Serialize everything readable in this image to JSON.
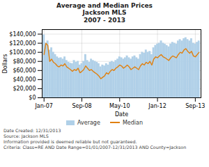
{
  "chart_data": {
    "type": "bar",
    "title": "Average and Median Prices\nJackson MLS\n2007 - 2013",
    "xlabel": "Date",
    "ylabel": "Dollars",
    "categories": [
      "Jan-07",
      null,
      null,
      null,
      null,
      null,
      null,
      null,
      null,
      null,
      null,
      null,
      null,
      null,
      null,
      null,
      null,
      null,
      null,
      null,
      "Sep-08",
      null,
      null,
      null,
      null,
      null,
      null,
      null,
      null,
      null,
      null,
      null,
      null,
      null,
      null,
      null,
      null,
      null,
      null,
      null,
      "May-10",
      null,
      null,
      null,
      null,
      null,
      null,
      null,
      null,
      null,
      null,
      null,
      null,
      null,
      null,
      null,
      null,
      null,
      null,
      null,
      "Jan-12",
      null,
      null,
      null,
      null,
      null,
      null,
      null,
      null,
      null,
      null,
      null,
      null,
      null,
      null,
      null,
      null,
      null,
      null,
      null,
      "Sep-13",
      null,
      null
    ],
    "series": [
      {
        "name": "Average",
        "type": "bar",
        "color": "#b0d0e8",
        "values": [
          138000,
          120000,
          125000,
          105000,
          110000,
          100000,
          95000,
          90000,
          87000,
          88000,
          85000,
          90000,
          82000,
          78000,
          76000,
          75000,
          82000,
          78000,
          80000,
          72000,
          75000,
          80000,
          95000,
          82000,
          78000,
          85000,
          82000,
          80000,
          78000,
          75000,
          68000,
          72000,
          70000,
          75000,
          72000,
          78000,
          80000,
          78000,
          82000,
          85000,
          90000,
          88000,
          85000,
          88000,
          92000,
          88000,
          85000,
          90000,
          92000,
          88000,
          85000,
          95000,
          100000,
          98000,
          105000,
          100000,
          102000,
          95000,
          110000,
          115000,
          118000,
          120000,
          125000,
          120000,
          118000,
          115000,
          112000,
          118000,
          122000,
          120000,
          118000,
          125000,
          128000,
          125000,
          130000,
          132000,
          128000,
          125000,
          130000,
          120000,
          118000,
          122000,
          125000
        ]
      },
      {
        "name": "Median",
        "type": "line",
        "color": "#e08010",
        "values": [
          95000,
          120000,
          115000,
          80000,
          85000,
          78000,
          75000,
          70000,
          68000,
          72000,
          70000,
          75000,
          68000,
          65000,
          62000,
          58000,
          62000,
          60000,
          65000,
          55000,
          58000,
          62000,
          70000,
          65000,
          60000,
          62000,
          58000,
          55000,
          52000,
          48000,
          42000,
          45000,
          48000,
          55000,
          52000,
          58000,
          62000,
          60000,
          65000,
          68000,
          72000,
          70000,
          65000,
          68000,
          72000,
          68000,
          62000,
          65000,
          68000,
          65000,
          62000,
          70000,
          75000,
          72000,
          78000,
          75000,
          80000,
          72000,
          85000,
          90000,
          88000,
          92000,
          95000,
          90000,
          88000,
          85000,
          82000,
          88000,
          92000,
          90000,
          88000,
          95000,
          100000,
          98000,
          105000,
          108000,
          102000,
          98000,
          102000,
          92000,
          90000,
          95000,
          100000
        ]
      }
    ],
    "ylim": [
      0,
      150000
    ],
    "yticks": [
      {
        "value": 0,
        "label": "$0"
      },
      {
        "value": 20000,
        "label": "$20,000"
      },
      {
        "value": 40000,
        "label": "$40,000"
      },
      {
        "value": 60000,
        "label": "$60,000"
      },
      {
        "value": 80000,
        "label": "$80,000"
      },
      {
        "value": 100000,
        "label": "$100,000"
      },
      {
        "value": 120000,
        "label": "$120,000"
      },
      {
        "value": 140000,
        "label": "$140,000"
      }
    ],
    "grid": true,
    "legend": "bottom",
    "annotations": [
      "Date Created: 12/31/2013",
      "Source: Jackson MLS",
      "Information provided is deemed reliable but not guaranteed.",
      "Criteria: Class=RE AND Date Range=01/01/2007-12/31/2013 AND County=Jackson"
    ]
  }
}
